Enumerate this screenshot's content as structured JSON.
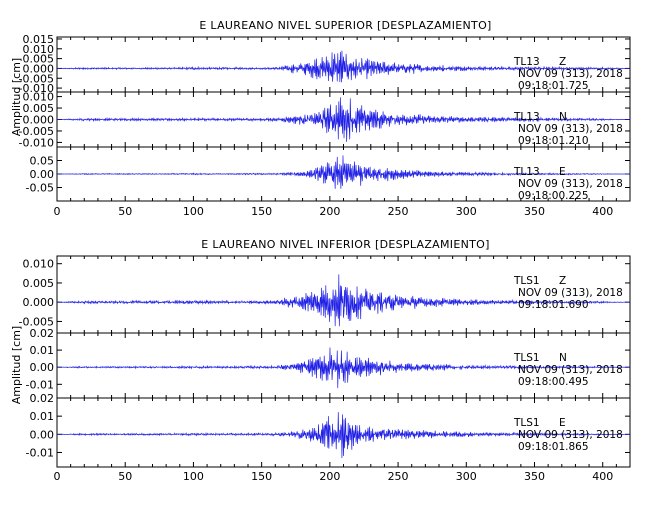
{
  "trace_color": "#1f1fe6",
  "chart_data": [
    {
      "type": "line",
      "title": "E LAUREANO NIVEL SUPERIOR [DESPLAZAMIENTO]",
      "ylabel": "Amplitud [cm]",
      "xlim": [
        0,
        420
      ],
      "x_ticks": [
        0,
        50,
        100,
        150,
        200,
        250,
        300,
        350,
        400
      ],
      "x_tick_labels": [
        "0",
        "50",
        "100",
        "150",
        "200",
        "250",
        "300",
        "350",
        "400"
      ],
      "grid": false,
      "panels": [
        {
          "station": "TL13",
          "component": "Z",
          "date": "NOV 09 (313), 2018",
          "time": "09:18:01.725",
          "ylim": [
            -0.012,
            0.016
          ],
          "y_ticks": [
            0.015,
            0.01,
            0.005,
            0.0,
            -0.005,
            -0.01
          ],
          "y_tick_labels": [
            "0.015",
            "0.010",
            "0.005",
            "0.000",
            "-0.005",
            "-0.010"
          ],
          "series": [
            {
              "samples": [
                [
                  0,
                  0
                ],
                [
                  20,
                  0.0006
                ],
                [
                  40,
                  -0.0005
                ],
                [
                  60,
                  0.0004
                ],
                [
                  80,
                  -0.0005
                ],
                [
                  100,
                  0.0008
                ],
                [
                  120,
                  -0.0006
                ],
                [
                  140,
                  0.0005
                ],
                [
                  160,
                  -0.0006
                ],
                [
                  175,
                  0.003
                ],
                [
                  180,
                  -0.004
                ],
                [
                  185,
                  0.005
                ],
                [
                  190,
                  -0.006
                ],
                [
                  195,
                  0.007
                ],
                [
                  200,
                  -0.008
                ],
                [
                  204,
                  0.012
                ],
                [
                  208,
                  -0.011
                ],
                [
                  212,
                  0.008
                ],
                [
                  216,
                  -0.008
                ],
                [
                  220,
                  0.006
                ],
                [
                  225,
                  -0.006
                ],
                [
                  232,
                  0.005
                ],
                [
                  240,
                  -0.004
                ],
                [
                  250,
                  0.003
                ],
                [
                  260,
                  -0.003
                ],
                [
                  270,
                  0.002
                ],
                [
                  285,
                  -0.0018
                ],
                [
                  300,
                  0.0012
                ],
                [
                  320,
                  -0.001
                ],
                [
                  340,
                  0.0008
                ],
                [
                  360,
                  -0.0008
                ],
                [
                  380,
                  0.0006
                ],
                [
                  400,
                  -0.0006
                ],
                [
                  420,
                  0
                ]
              ]
            }
          ]
        },
        {
          "station": "TL13",
          "component": "N",
          "date": "NOV 09 (313), 2018",
          "time": "09:18:01.210",
          "ylim": [
            -0.012,
            0.012
          ],
          "y_ticks": [
            0.01,
            0.005,
            0.0,
            -0.005,
            -0.01
          ],
          "y_tick_labels": [
            "0.010",
            "0.005",
            "0.000",
            "-0.005",
            "-0.010"
          ],
          "series": [
            {
              "samples": [
                [
                  0,
                  0
                ],
                [
                  20,
                  0.0006
                ],
                [
                  40,
                  -0.0006
                ],
                [
                  60,
                  0.0005
                ],
                [
                  80,
                  -0.0006
                ],
                [
                  100,
                  0.0007
                ],
                [
                  120,
                  -0.0006
                ],
                [
                  140,
                  0.0006
                ],
                [
                  160,
                  -0.0008
                ],
                [
                  175,
                  0.002
                ],
                [
                  185,
                  -0.003
                ],
                [
                  193,
                  0.004
                ],
                [
                  200,
                  -0.007
                ],
                [
                  205,
                  0.009
                ],
                [
                  210,
                  -0.011
                ],
                [
                  215,
                  0.01
                ],
                [
                  220,
                  -0.008
                ],
                [
                  225,
                  0.006
                ],
                [
                  232,
                  -0.005
                ],
                [
                  240,
                  0.004
                ],
                [
                  250,
                  -0.003
                ],
                [
                  262,
                  0.0025
                ],
                [
                  275,
                  -0.002
                ],
                [
                  290,
                  0.0015
                ],
                [
                  310,
                  -0.0012
                ],
                [
                  330,
                  0.001
                ],
                [
                  350,
                  -0.0008
                ],
                [
                  370,
                  0.0007
                ],
                [
                  390,
                  -0.0006
                ],
                [
                  420,
                  0
                ]
              ]
            }
          ]
        },
        {
          "station": "TL13",
          "component": "E",
          "date": "NOV 09 (313), 2018",
          "time": "09:18:00.225",
          "ylim": [
            -0.1,
            0.1
          ],
          "y_ticks": [
            0.05,
            0.0,
            -0.05
          ],
          "y_tick_labels": [
            "0.05",
            "0.00",
            "-0.05"
          ],
          "series": [
            {
              "samples": [
                [
                  0,
                  0
                ],
                [
                  20,
                  0.002
                ],
                [
                  40,
                  -0.002
                ],
                [
                  60,
                  0.002
                ],
                [
                  80,
                  -0.002
                ],
                [
                  100,
                  0.003
                ],
                [
                  120,
                  -0.002
                ],
                [
                  140,
                  0.003
                ],
                [
                  160,
                  -0.003
                ],
                [
                  175,
                  0.008
                ],
                [
                  185,
                  -0.015
                ],
                [
                  193,
                  0.03
                ],
                [
                  200,
                  -0.05
                ],
                [
                  205,
                  0.065
                ],
                [
                  210,
                  -0.07
                ],
                [
                  215,
                  0.06
                ],
                [
                  220,
                  -0.05
                ],
                [
                  228,
                  0.04
                ],
                [
                  236,
                  -0.03
                ],
                [
                  245,
                  0.025
                ],
                [
                  255,
                  -0.018
                ],
                [
                  268,
                  0.013
                ],
                [
                  282,
                  -0.01
                ],
                [
                  300,
                  0.007
                ],
                [
                  320,
                  -0.005
                ],
                [
                  345,
                  0.004
                ],
                [
                  370,
                  -0.003
                ],
                [
                  395,
                  0.002
                ],
                [
                  420,
                  0
                ]
              ]
            }
          ]
        }
      ]
    },
    {
      "type": "line",
      "title": "E LAUREANO NIVEL INFERIOR [DESPLAZAMIENTO]",
      "ylabel": "Amplitud [cm]",
      "xlim": [
        0,
        420
      ],
      "x_ticks": [
        0,
        50,
        100,
        150,
        200,
        250,
        300,
        350,
        400
      ],
      "x_tick_labels": [
        "0",
        "50",
        "100",
        "150",
        "200",
        "250",
        "300",
        "350",
        "400"
      ],
      "grid": false,
      "panels": [
        {
          "station": "TLS1",
          "component": "Z",
          "date": "NOV 09 (313), 2018",
          "time": "09:18:01.690",
          "ylim": [
            -0.008,
            0.012
          ],
          "y_ticks": [
            0.01,
            0.005,
            0.0,
            -0.005
          ],
          "y_tick_labels": [
            "0.010",
            "0.005",
            "0.000",
            "-0.005"
          ],
          "series": [
            {
              "samples": [
                [
                  0,
                  0
                ],
                [
                  20,
                  0.0004
                ],
                [
                  40,
                  -0.0003
                ],
                [
                  60,
                  0.0004
                ],
                [
                  80,
                  -0.0004
                ],
                [
                  100,
                  0.0005
                ],
                [
                  120,
                  -0.0004
                ],
                [
                  140,
                  0.0004
                ],
                [
                  160,
                  -0.0005
                ],
                [
                  175,
                  0.002
                ],
                [
                  185,
                  -0.003
                ],
                [
                  193,
                  0.004
                ],
                [
                  200,
                  -0.006
                ],
                [
                  205,
                  0.008
                ],
                [
                  210,
                  -0.007
                ],
                [
                  215,
                  0.006
                ],
                [
                  220,
                  -0.005
                ],
                [
                  228,
                  0.004
                ],
                [
                  236,
                  -0.003
                ],
                [
                  245,
                  0.0025
                ],
                [
                  255,
                  -0.002
                ],
                [
                  268,
                  0.0015
                ],
                [
                  282,
                  -0.0012
                ],
                [
                  300,
                  0.0008
                ],
                [
                  320,
                  -0.0006
                ],
                [
                  345,
                  0.0005
                ],
                [
                  370,
                  -0.0004
                ],
                [
                  395,
                  0.0003
                ],
                [
                  420,
                  0
                ]
              ]
            }
          ]
        },
        {
          "station": "TLS1",
          "component": "N",
          "date": "NOV 09 (313), 2018",
          "time": "09:18:00.495",
          "ylim": [
            -0.018,
            0.02
          ],
          "y_ticks": [
            0.02,
            0.01,
            0.0,
            -0.01
          ],
          "y_tick_labels": [
            "0.02",
            "0.01",
            "0.00",
            "-0.01"
          ],
          "series": [
            {
              "samples": [
                [
                  0,
                  0
                ],
                [
                  20,
                  0.0006
                ],
                [
                  40,
                  -0.0005
                ],
                [
                  60,
                  0.0006
                ],
                [
                  80,
                  -0.0006
                ],
                [
                  100,
                  0.0008
                ],
                [
                  120,
                  -0.0006
                ],
                [
                  140,
                  0.0007
                ],
                [
                  160,
                  -0.0008
                ],
                [
                  175,
                  0.003
                ],
                [
                  185,
                  -0.005
                ],
                [
                  193,
                  0.008
                ],
                [
                  200,
                  -0.012
                ],
                [
                  205,
                  0.013
                ],
                [
                  210,
                  -0.011
                ],
                [
                  215,
                  0.009
                ],
                [
                  220,
                  -0.008
                ],
                [
                  228,
                  0.006
                ],
                [
                  236,
                  -0.005
                ],
                [
                  245,
                  0.004
                ],
                [
                  255,
                  -0.003
                ],
                [
                  268,
                  0.0025
                ],
                [
                  282,
                  -0.002
                ],
                [
                  300,
                  0.0014
                ],
                [
                  320,
                  -0.001
                ],
                [
                  345,
                  0.0008
                ],
                [
                  370,
                  -0.0006
                ],
                [
                  395,
                  0.0005
                ],
                [
                  420,
                  0
                ]
              ]
            }
          ]
        },
        {
          "station": "TLS1",
          "component": "E",
          "date": "NOV 09 (313), 2018",
          "time": "09:18:01.865",
          "ylim": [
            -0.018,
            0.02
          ],
          "y_ticks": [
            0.02,
            0.01,
            0.0,
            -0.01
          ],
          "y_tick_labels": [
            "0.02",
            "0.01",
            "0.00",
            "-0.01"
          ],
          "series": [
            {
              "samples": [
                [
                  0,
                  0
                ],
                [
                  20,
                  0.0006
                ],
                [
                  40,
                  -0.0005
                ],
                [
                  60,
                  0.0006
                ],
                [
                  80,
                  -0.0006
                ],
                [
                  100,
                  0.0008
                ],
                [
                  120,
                  -0.0006
                ],
                [
                  140,
                  0.0007
                ],
                [
                  160,
                  -0.0008
                ],
                [
                  175,
                  0.002
                ],
                [
                  185,
                  -0.004
                ],
                [
                  193,
                  0.007
                ],
                [
                  200,
                  -0.011
                ],
                [
                  205,
                  0.012
                ],
                [
                  210,
                  -0.015
                ],
                [
                  215,
                  0.009
                ],
                [
                  220,
                  -0.007
                ],
                [
                  228,
                  0.005
                ],
                [
                  236,
                  -0.004
                ],
                [
                  245,
                  0.0035
                ],
                [
                  255,
                  -0.003
                ],
                [
                  268,
                  0.0025
                ],
                [
                  282,
                  -0.002
                ],
                [
                  300,
                  0.0015
                ],
                [
                  320,
                  -0.001
                ],
                [
                  345,
                  0.0008
                ],
                [
                  370,
                  -0.0006
                ],
                [
                  395,
                  0.0005
                ],
                [
                  420,
                  0
                ]
              ]
            }
          ]
        }
      ]
    }
  ]
}
